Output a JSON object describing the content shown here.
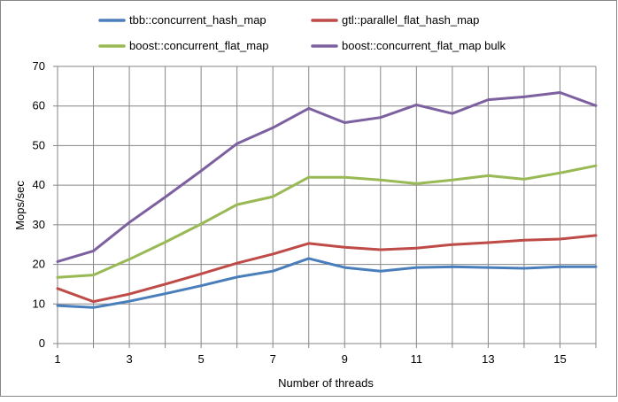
{
  "chart_data": {
    "type": "line",
    "title": "",
    "xlabel": "Number of threads",
    "ylabel": "Mops/sec",
    "xlim": [
      1,
      16
    ],
    "ylim": [
      0,
      70
    ],
    "x_ticks": [
      1,
      3,
      5,
      7,
      9,
      11,
      13,
      15
    ],
    "y_ticks": [
      0,
      10,
      20,
      30,
      40,
      50,
      60,
      70
    ],
    "grid": true,
    "legend": "top",
    "x": [
      1,
      2,
      3,
      4,
      5,
      6,
      7,
      8,
      9,
      10,
      11,
      12,
      13,
      14,
      15,
      16
    ],
    "series": [
      {
        "name": "tbb::concurrent_hash_map",
        "color": "#4a7ebb",
        "values": [
          9.6,
          9.1,
          10.7,
          12.6,
          14.6,
          16.8,
          18.3,
          21.5,
          19.2,
          18.3,
          19.2,
          19.4,
          19.2,
          19.0,
          19.4,
          19.4
        ]
      },
      {
        "name": "gtl::parallel_flat_hash_map",
        "color": "#be4b48",
        "values": [
          13.9,
          10.6,
          12.5,
          15.0,
          17.6,
          20.3,
          22.6,
          25.3,
          24.3,
          23.7,
          24.1,
          25.0,
          25.5,
          26.1,
          26.4,
          27.3
        ]
      },
      {
        "name": "boost::concurrent_flat_map",
        "color": "#98b954",
        "values": [
          16.7,
          17.3,
          21.3,
          25.6,
          30.2,
          35.1,
          37.1,
          42.0,
          42.0,
          41.3,
          40.4,
          41.3,
          42.4,
          41.5,
          43.1,
          44.9
        ]
      },
      {
        "name": "boost::concurrent_flat_map bulk",
        "color": "#7d60a0",
        "values": [
          20.7,
          23.4,
          30.6,
          37.0,
          43.6,
          50.5,
          54.5,
          59.4,
          55.8,
          57.1,
          60.3,
          58.1,
          61.6,
          62.3,
          63.4,
          60.1
        ]
      }
    ]
  }
}
